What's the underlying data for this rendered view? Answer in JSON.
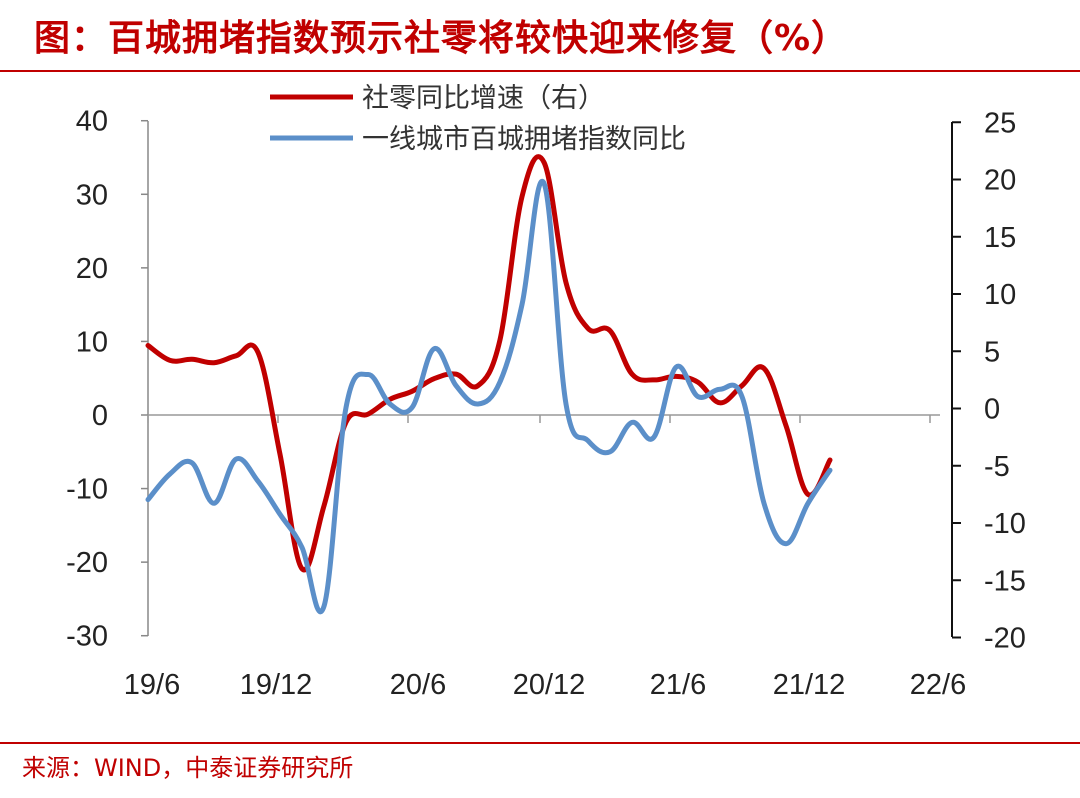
{
  "header": {
    "title": "图：百城拥堵指数预示社零将较快迎来修复（%）"
  },
  "footer": {
    "source": "来源：WIND，中泰证券研究所"
  },
  "chart_data": {
    "type": "line",
    "x_tick_labels": [
      "19/6",
      "19/12",
      "20/6",
      "20/12",
      "21/6",
      "21/12",
      "22/6"
    ],
    "y_left": {
      "ticks": [
        "40",
        "30",
        "20",
        "10",
        "0",
        "-10",
        "-20",
        "-30"
      ],
      "range": [
        -30,
        40
      ]
    },
    "y_right": {
      "ticks": [
        "25",
        "20",
        "15",
        "10",
        "5",
        "0",
        "-5",
        "-10",
        "-15",
        "-20"
      ],
      "range": [
        -20,
        25
      ]
    },
    "legend_position": "top",
    "series": [
      {
        "name": "社零同比增速（右）",
        "axis": "right",
        "color": "#c00000",
        "points": [
          [
            "2019-06",
            5.5
          ],
          [
            "2019-07",
            4.2
          ],
          [
            "2019-08",
            4.3
          ],
          [
            "2019-09",
            4.0
          ],
          [
            "2019-10",
            4.6
          ],
          [
            "2019-11",
            4.9
          ],
          [
            "2019-12",
            -4.0
          ],
          [
            "2020-01",
            -14.0
          ],
          [
            "2020-02",
            -8.5
          ],
          [
            "2020-03",
            -1.2
          ],
          [
            "2020-04",
            -0.5
          ],
          [
            "2020-05",
            0.8
          ],
          [
            "2020-06",
            1.5
          ],
          [
            "2020-07",
            2.6
          ],
          [
            "2020-08",
            3.0
          ],
          [
            "2020-09",
            2.0
          ],
          [
            "2020-10",
            6.0
          ],
          [
            "2020-11",
            18.5
          ],
          [
            "2020-12",
            21.5
          ],
          [
            "2021-01",
            11.0
          ],
          [
            "2021-02",
            7.0
          ],
          [
            "2021-03",
            6.8
          ],
          [
            "2021-04",
            3.0
          ],
          [
            "2021-05",
            2.5
          ],
          [
            "2021-06",
            2.8
          ],
          [
            "2021-07",
            2.3
          ],
          [
            "2021-08",
            0.5
          ],
          [
            "2021-09",
            2.0
          ],
          [
            "2021-10",
            3.5
          ],
          [
            "2021-11",
            -1.5
          ],
          [
            "2021-12",
            -7.5
          ],
          [
            "2022-01",
            -4.5
          ]
        ]
      },
      {
        "name": "一线城市百城拥堵指数同比",
        "axis": "left",
        "color": "#5b8fc9",
        "points": [
          [
            "2019-06",
            -11.5
          ],
          [
            "2019-07",
            -8.0
          ],
          [
            "2019-08",
            -6.5
          ],
          [
            "2019-09",
            -12.0
          ],
          [
            "2019-10",
            -6.0
          ],
          [
            "2019-11",
            -9.0
          ],
          [
            "2019-12",
            -13.5
          ],
          [
            "2020-01",
            -18.0
          ],
          [
            "2020-02",
            -26.0
          ],
          [
            "2020-03",
            1.0
          ],
          [
            "2020-04",
            5.5
          ],
          [
            "2020-05",
            1.5
          ],
          [
            "2020-06",
            1.0
          ],
          [
            "2020-07",
            9.0
          ],
          [
            "2020-08",
            4.0
          ],
          [
            "2020-09",
            1.5
          ],
          [
            "2020-10",
            4.5
          ],
          [
            "2020-11",
            15.0
          ],
          [
            "2020-12",
            31.5
          ],
          [
            "2021-01",
            1.5
          ],
          [
            "2021-02",
            -3.5
          ],
          [
            "2021-03",
            -5.0
          ],
          [
            "2021-04",
            -1.0
          ],
          [
            "2021-05",
            -3.0
          ],
          [
            "2021-06",
            6.5
          ],
          [
            "2021-07",
            2.5
          ],
          [
            "2021-08",
            3.5
          ],
          [
            "2021-09",
            2.5
          ],
          [
            "2021-10",
            -12.0
          ],
          [
            "2021-11",
            -17.5
          ],
          [
            "2021-12",
            -12.0
          ],
          [
            "2022-01",
            -7.5
          ]
        ]
      }
    ]
  }
}
